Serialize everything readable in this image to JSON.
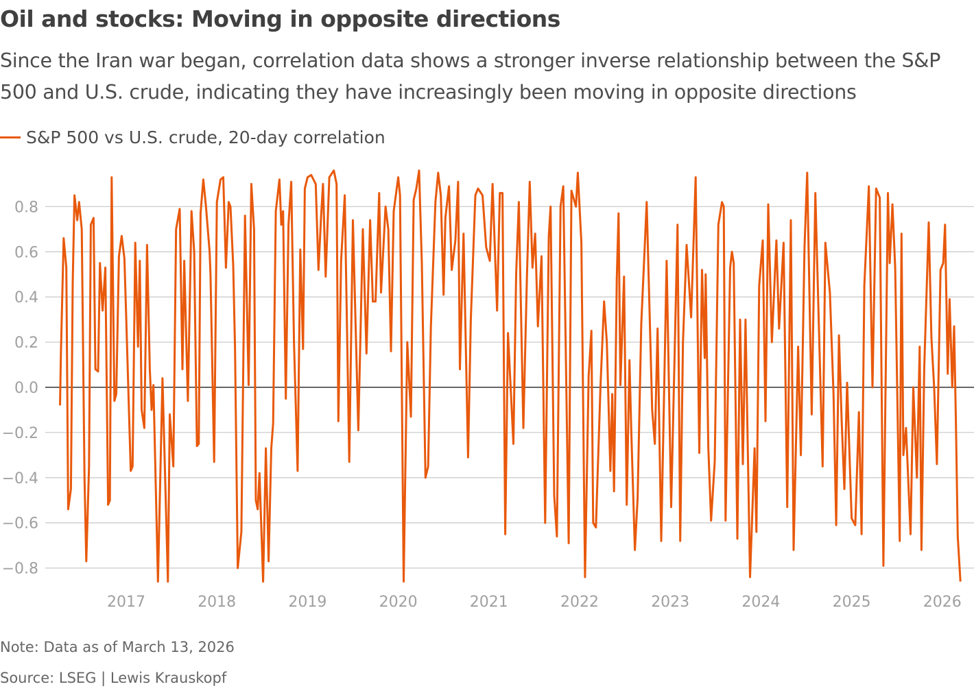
{
  "header": {
    "title": "Oil and stocks: Moving in opposite directions",
    "subtitle": "Since the Iran war began, correlation data shows a stronger inverse relationship between the S&P 500 and U.S. crude, indicating they have increasingly been moving in opposite directions"
  },
  "footer": {
    "note": "Note: Data as of March 13, 2026",
    "source": "Source: LSEG | Lewis Krauskopf"
  },
  "chart_data": {
    "type": "line",
    "title": "Oil and stocks: Moving in opposite directions",
    "xlabel": "",
    "ylabel": "",
    "xlim": [
      2016.2,
      2026.25
    ],
    "ylim": [
      -0.88,
      0.97
    ],
    "grid": true,
    "legend_placement": "top-left",
    "colors": {
      "line": "#e8590c",
      "grid": "#cccccc",
      "zero_line": "#333333"
    },
    "x_ticks": [
      2017,
      2018,
      2019,
      2020,
      2021,
      2022,
      2023,
      2024,
      2025,
      2026
    ],
    "x_tick_labels": [
      "2017",
      "2018",
      "2019",
      "2020",
      "2021",
      "2022",
      "2023",
      "2024",
      "2025",
      "2026"
    ],
    "y_ticks": [
      0.8,
      0.6,
      0.4,
      0.2,
      0.0,
      -0.2,
      -0.4,
      -0.6,
      -0.8
    ],
    "y_tick_labels": [
      "0.8",
      "0.6",
      "0.4",
      "0.2",
      "0.0",
      "−0.2",
      "−0.4",
      "−0.6",
      "−0.8"
    ],
    "series": [
      {
        "name": "S&P 500 vs U.S. crude, 20-day correlation",
        "x": [
          2016.27,
          2016.28,
          2016.31,
          2016.34,
          2016.36,
          2016.39,
          2016.41,
          2016.43,
          2016.46,
          2016.48,
          2016.51,
          2016.54,
          2016.56,
          2016.59,
          2016.61,
          2016.64,
          2016.66,
          2016.69,
          2016.71,
          2016.74,
          2016.77,
          2016.8,
          2016.82,
          2016.84,
          2016.87,
          2016.89,
          2016.92,
          2016.95,
          2016.98,
          2017.0,
          2017.05,
          2017.07,
          2017.1,
          2017.13,
          2017.15,
          2017.17,
          2017.2,
          2017.23,
          2017.26,
          2017.28,
          2017.3,
          2017.35,
          2017.4,
          2017.46,
          2017.48,
          2017.52,
          2017.55,
          2017.59,
          2017.62,
          2017.64,
          2017.68,
          2017.72,
          2017.75,
          2017.78,
          2017.8,
          2017.82,
          2017.85,
          2017.88,
          2017.92,
          2017.93,
          2017.97,
          2018.0,
          2018.04,
          2018.07,
          2018.1,
          2018.13,
          2018.15,
          2018.18,
          2018.2,
          2018.23,
          2018.27,
          2018.31,
          2018.35,
          2018.38,
          2018.41,
          2018.43,
          2018.45,
          2018.47,
          2018.51,
          2018.54,
          2018.57,
          2018.6,
          2018.62,
          2018.65,
          2018.69,
          2018.71,
          2018.73,
          2018.76,
          2018.79,
          2018.82,
          2018.85,
          2018.89,
          2018.92,
          2018.95,
          2018.97,
          2019.0,
          2019.04,
          2019.09,
          2019.12,
          2019.15,
          2019.17,
          2019.2,
          2019.24,
          2019.29,
          2019.32,
          2019.34,
          2019.37,
          2019.41,
          2019.46,
          2019.5,
          2019.56,
          2019.61,
          2019.65,
          2019.69,
          2019.72,
          2019.75,
          2019.79,
          2019.81,
          2019.86,
          2019.89,
          2019.92,
          2019.95,
          2020.0,
          2020.02,
          2020.06,
          2020.1,
          2020.14,
          2020.17,
          2020.2,
          2020.23,
          2020.26,
          2020.3,
          2020.33,
          2020.36,
          2020.41,
          2020.44,
          2020.47,
          2020.5,
          2020.52,
          2020.56,
          2020.59,
          2020.63,
          2020.66,
          2020.68,
          2020.72,
          2020.77,
          2020.8,
          2020.85,
          2020.88,
          2020.93,
          2020.97,
          2021.01,
          2021.04,
          2021.09,
          2021.12,
          2021.15,
          2021.18,
          2021.21,
          2021.27,
          2021.3,
          2021.33,
          2021.38,
          2021.42,
          2021.45,
          2021.48,
          2021.51,
          2021.54,
          2021.58,
          2021.62,
          2021.66,
          2021.68,
          2021.72,
          2021.75,
          2021.79,
          2021.82,
          2021.88,
          2021.91,
          2021.96,
          2021.98,
          2022.02,
          2022.06,
          2022.1,
          2022.13,
          2022.15,
          2022.18,
          2022.23,
          2022.27,
          2022.3,
          2022.34,
          2022.36,
          2022.38,
          2022.41,
          2022.43,
          2022.45,
          2022.49,
          2022.52,
          2022.55,
          2022.57,
          2022.61,
          2022.64,
          2022.68,
          2022.72,
          2022.74,
          2022.8,
          2022.83,
          2022.86,
          2022.9,
          2022.96,
          2023.01,
          2023.08,
          2023.11,
          2023.14,
          2023.18,
          2023.23,
          2023.28,
          2023.32,
          2023.35,
          2023.38,
          2023.39,
          2023.42,
          2023.45,
          2023.49,
          2023.53,
          2023.57,
          2023.59,
          2023.61,
          2023.66,
          2023.68,
          2023.7,
          2023.74,
          2023.77,
          2023.8,
          2023.83,
          2023.88,
          2023.93,
          2023.95,
          2023.98,
          2024.02,
          2024.05,
          2024.08,
          2024.12,
          2024.17,
          2024.2,
          2024.25,
          2024.29,
          2024.33,
          2024.36,
          2024.41,
          2024.44,
          2024.48,
          2024.51,
          2024.56,
          2024.6,
          2024.68,
          2024.71,
          2024.76,
          2024.8,
          2024.83,
          2024.86,
          2024.89,
          2024.92,
          2024.95,
          2025.0,
          2025.04,
          2025.08,
          2025.11,
          2025.14,
          2025.19,
          2025.23,
          2025.27,
          2025.31,
          2025.35,
          2025.4,
          2025.42,
          2025.45,
          2025.48,
          2025.53,
          2025.55,
          2025.57,
          2025.6,
          2025.65,
          2025.68,
          2025.72,
          2025.75,
          2025.77,
          2025.8,
          2025.85,
          2025.88,
          2025.91,
          2025.94,
          2025.98,
          2026.01,
          2026.03,
          2026.06,
          2026.08,
          2026.11,
          2026.13,
          2026.15,
          2026.17,
          2026.2
        ],
        "y": [
          -0.08,
          0.15,
          0.66,
          0.53,
          -0.54,
          -0.45,
          0.46,
          0.85,
          0.74,
          0.82,
          0.7,
          -0.4,
          -0.77,
          -0.35,
          0.72,
          0.75,
          0.08,
          0.07,
          0.55,
          0.34,
          0.53,
          -0.52,
          -0.5,
          0.93,
          -0.06,
          -0.03,
          0.58,
          0.67,
          0.57,
          0.31,
          -0.37,
          -0.35,
          0.64,
          0.18,
          0.56,
          -0.1,
          -0.18,
          0.63,
          0.08,
          -0.1,
          0.01,
          -0.86,
          0.04,
          -0.86,
          -0.12,
          -0.35,
          0.7,
          0.79,
          0.08,
          0.56,
          -0.06,
          0.78,
          0.6,
          -0.26,
          -0.25,
          0.77,
          0.92,
          0.8,
          0.6,
          0.5,
          -0.33,
          0.82,
          0.92,
          0.93,
          0.53,
          0.82,
          0.8,
          0.54,
          0.18,
          -0.8,
          -0.64,
          0.76,
          0.01,
          0.9,
          0.7,
          -0.5,
          -0.54,
          -0.38,
          -0.86,
          -0.27,
          -0.77,
          -0.27,
          -0.16,
          0.78,
          0.92,
          0.72,
          0.78,
          -0.05,
          0.72,
          0.91,
          0.2,
          -0.37,
          0.61,
          0.17,
          0.88,
          0.93,
          0.94,
          0.9,
          0.52,
          0.76,
          0.9,
          0.49,
          0.93,
          0.96,
          0.9,
          -0.15,
          0.56,
          0.85,
          -0.33,
          0.74,
          -0.19,
          0.7,
          0.15,
          0.74,
          0.38,
          0.38,
          0.86,
          0.42,
          0.8,
          0.7,
          0.16,
          0.78,
          0.93,
          0.85,
          -0.86,
          0.2,
          -0.13,
          0.83,
          0.88,
          0.96,
          0.55,
          -0.4,
          -0.35,
          0.27,
          0.82,
          0.95,
          0.85,
          0.41,
          0.75,
          0.89,
          0.52,
          0.65,
          0.91,
          0.08,
          0.68,
          -0.31,
          0.3,
          0.85,
          0.88,
          0.85,
          0.62,
          0.56,
          0.9,
          0.34,
          0.86,
          0.86,
          -0.65,
          0.24,
          -0.25,
          0.5,
          0.82,
          -0.18,
          0.5,
          0.91,
          0.53,
          0.68,
          0.27,
          0.58,
          -0.6,
          0.67,
          0.8,
          -0.48,
          -0.66,
          0.8,
          0.89,
          -0.69,
          0.87,
          0.8,
          0.95,
          0.64,
          -0.84,
          0.05,
          0.25,
          -0.6,
          -0.62,
          0.0,
          0.38,
          0.2,
          -0.37,
          -0.03,
          -0.46,
          0.48,
          0.77,
          0.01,
          0.49,
          -0.52,
          0.12,
          -0.2,
          -0.72,
          -0.49,
          0.28,
          0.64,
          0.82,
          -0.1,
          -0.25,
          0.26,
          -0.68,
          0.56,
          -0.53,
          0.72,
          -0.68,
          0.2,
          0.63,
          0.31,
          0.93,
          -0.29,
          0.52,
          0.13,
          0.5,
          -0.27,
          -0.59,
          -0.33,
          0.72,
          0.82,
          0.8,
          -0.59,
          0.53,
          0.6,
          0.55,
          -0.67,
          0.3,
          -0.34,
          0.3,
          -0.84,
          -0.27,
          -0.64,
          0.45,
          0.65,
          -0.15,
          0.81,
          0.2,
          0.65,
          0.26,
          0.64,
          -0.53,
          0.74,
          -0.72,
          0.18,
          -0.3,
          0.62,
          0.95,
          -0.12,
          0.86,
          -0.35,
          0.64,
          0.42,
          -0.03,
          -0.61,
          0.23,
          -0.15,
          -0.45,
          0.02,
          -0.58,
          -0.61,
          -0.11,
          -0.65,
          0.45,
          0.89,
          0.0,
          0.88,
          0.84,
          -0.79,
          0.86,
          0.55,
          0.81,
          0.53,
          -0.68,
          0.68,
          -0.3,
          -0.18,
          -0.65,
          0.0,
          -0.4,
          0.18,
          -0.72,
          0.08,
          0.73,
          0.22,
          0.0,
          -0.34,
          0.52,
          0.55,
          0.72,
          0.06,
          0.39,
          0.0,
          0.27,
          -0.15,
          -0.66,
          -0.86
        ]
      }
    ]
  }
}
